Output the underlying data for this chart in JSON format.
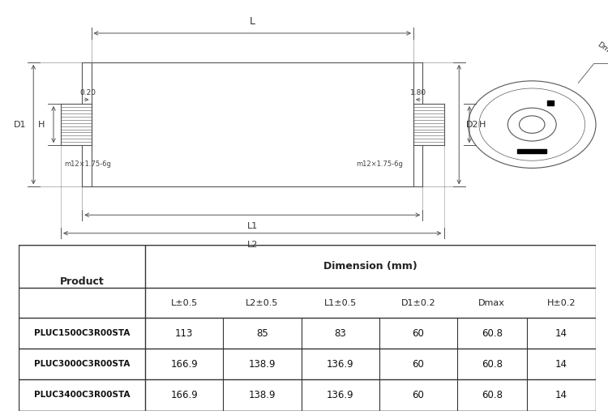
{
  "bg_color": "#ffffff",
  "line_color": "#555555",
  "table_border_color": "#333333",
  "product_col_header": "Product",
  "dim_header": "Dimension (mm)",
  "col_headers": [
    "L±0.5",
    "L2±0.5",
    "L1±0.5",
    "D1±0.2",
    "Dmax",
    "H±0.2"
  ],
  "rows": [
    [
      "PLUC1500C3R00STA",
      "113",
      "85",
      "83",
      "60",
      "60.8",
      "14"
    ],
    [
      "PLUC3000C3R00STA",
      "166.9",
      "138.9",
      "136.9",
      "60",
      "60.8",
      "14"
    ],
    [
      "PLUC3400C3R00STA",
      "166.9",
      "138.9",
      "136.9",
      "60",
      "60.8",
      "14"
    ]
  ],
  "diagram_labels": {
    "L": "L",
    "L1": "L1",
    "L2": "L2",
    "D1": "D1",
    "D2": "D2",
    "H_left": "H",
    "H_right": "H",
    "offset_left": "0.20",
    "offset_right": "1.80",
    "thread_left": "m12×1.75-6g",
    "thread_right": "m12×1.75-6g",
    "dmax_label": "Dmax"
  }
}
